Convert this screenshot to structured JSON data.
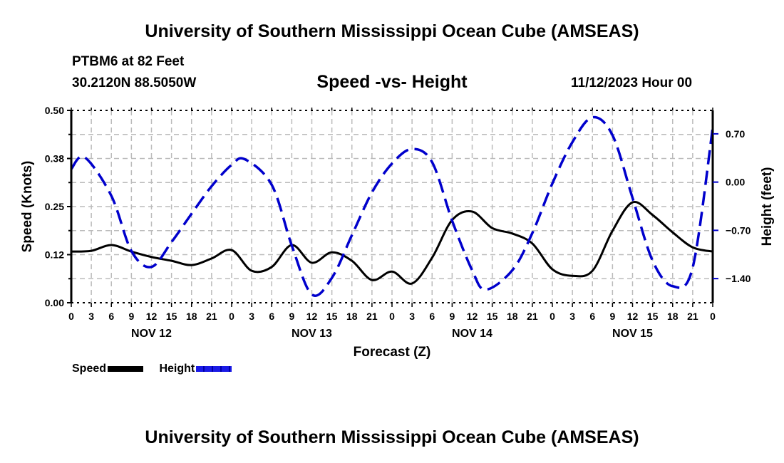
{
  "header": {
    "title": "University of Southern Mississippi Ocean Cube (AMSEAS)",
    "station": "PTBM6 at 82 Feet",
    "coords": "30.2120N  88.5050W",
    "subtitle": "Speed -vs- Height",
    "datetime": "11/12/2023 Hour 00"
  },
  "footer": {
    "title": "University of Southern Mississippi Ocean Cube (AMSEAS)"
  },
  "legend": {
    "items": [
      {
        "label": "Speed",
        "color": "#000000",
        "style": "solid"
      },
      {
        "label": "Height",
        "color": "#0000cc",
        "style": "dashed"
      }
    ]
  },
  "chart_data": {
    "type": "line",
    "title": "Speed -vs- Height",
    "xlabel": "Forecast (Z)",
    "ylabel": "Speed (Knots)",
    "y2label": "Height (feet)",
    "xlim": [
      0,
      96
    ],
    "ylim": [
      0.0,
      0.5
    ],
    "y2lim": [
      -1.75,
      1.04
    ],
    "grid": true,
    "legend_position": "bottom-left",
    "x_tick_hours": [
      0,
      3,
      6,
      9,
      12,
      15,
      18,
      21,
      24,
      27,
      30,
      33,
      36,
      39,
      42,
      45,
      48,
      51,
      54,
      57,
      60,
      63,
      66,
      69,
      72,
      75,
      78,
      81,
      84,
      87,
      90,
      93,
      96
    ],
    "x_tick_labels": [
      "0",
      "3",
      "6",
      "9",
      "12",
      "15",
      "18",
      "21",
      "0",
      "3",
      "6",
      "9",
      "12",
      "15",
      "18",
      "21",
      "0",
      "3",
      "6",
      "9",
      "12",
      "15",
      "18",
      "21",
      "0",
      "3",
      "6",
      "9",
      "12",
      "15",
      "18",
      "21",
      "0"
    ],
    "day_labels": [
      {
        "hour": 12,
        "label": "NOV 12"
      },
      {
        "hour": 36,
        "label": "NOV 13"
      },
      {
        "hour": 60,
        "label": "NOV 14"
      },
      {
        "hour": 84,
        "label": "NOV 15"
      }
    ],
    "y_ticks": [
      {
        "value": 0.5,
        "label": "0.50"
      },
      {
        "value": 0.375,
        "label": "0.38"
      },
      {
        "value": 0.25,
        "label": "0.25"
      },
      {
        "value": 0.125,
        "label": "0.12"
      },
      {
        "value": 0.0,
        "label": "0.00"
      }
    ],
    "y2_ticks": [
      {
        "value": 0.7,
        "label": "0.70"
      },
      {
        "value": 0.0,
        "label": "0.00"
      },
      {
        "value": -0.7,
        "label": "−0.70"
      },
      {
        "value": -1.4,
        "label": "−1.40"
      }
    ],
    "series": [
      {
        "name": "Speed",
        "axis": "left",
        "color": "#000000",
        "x": [
          0,
          3,
          6,
          9,
          12,
          15,
          18,
          21,
          24,
          27,
          30,
          33,
          36,
          39,
          42,
          45,
          48,
          51,
          54,
          57,
          60,
          63,
          66,
          69,
          72,
          75,
          78,
          81,
          84,
          87,
          90,
          93,
          96
        ],
        "values": [
          0.133,
          0.135,
          0.15,
          0.133,
          0.119,
          0.109,
          0.098,
          0.115,
          0.137,
          0.083,
          0.093,
          0.15,
          0.104,
          0.131,
          0.109,
          0.059,
          0.081,
          0.05,
          0.117,
          0.215,
          0.237,
          0.194,
          0.18,
          0.154,
          0.087,
          0.07,
          0.083,
          0.187,
          0.261,
          0.228,
          0.183,
          0.144,
          0.133
        ]
      },
      {
        "name": "Height",
        "axis": "right",
        "color": "#0000cc",
        "x": [
          0,
          2,
          6,
          9,
          12,
          15,
          18,
          21,
          24,
          26,
          30,
          33,
          36,
          39,
          42,
          45,
          48,
          51,
          54,
          57,
          60,
          62,
          66,
          69,
          72,
          75,
          78,
          81,
          84,
          87,
          90,
          93,
          96
        ],
        "values": [
          0.19,
          0.36,
          -0.2,
          -1.0,
          -1.23,
          -0.87,
          -0.46,
          -0.06,
          0.25,
          0.33,
          -0.04,
          -0.92,
          -1.63,
          -1.39,
          -0.77,
          -0.15,
          0.27,
          0.48,
          0.29,
          -0.56,
          -1.28,
          -1.56,
          -1.28,
          -0.74,
          -0.02,
          0.58,
          0.94,
          0.68,
          -0.23,
          -1.14,
          -1.51,
          -1.24,
          0.79
        ]
      }
    ]
  }
}
